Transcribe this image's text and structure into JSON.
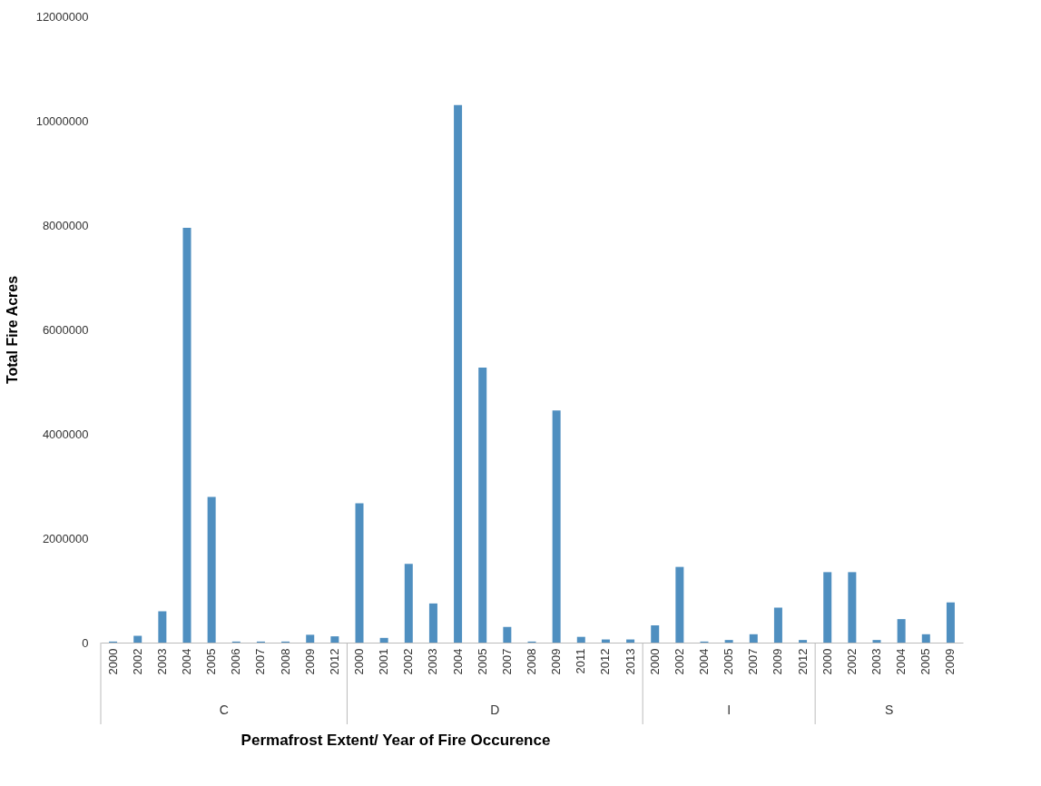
{
  "chart_data": {
    "type": "bar",
    "xlabel": "Permafrost Extent/ Year of Fire Occurence",
    "ylabel": "Total Fire Acres",
    "categories": [
      "2000",
      "2002",
      "2003",
      "2004",
      "2005",
      "2006",
      "2007",
      "2008",
      "2009",
      "2012",
      "2000",
      "2001",
      "2002",
      "2003",
      "2004",
      "2005",
      "2007",
      "2008",
      "2009",
      "2011",
      "2012",
      "2013",
      "2000",
      "2002",
      "2004",
      "2005",
      "2007",
      "2009",
      "2012",
      "2000",
      "2002",
      "2003",
      "2004",
      "2005",
      "2009"
    ],
    "values": [
      20000,
      130000,
      600000,
      7950000,
      2790000,
      20000,
      20000,
      20000,
      150000,
      120000,
      2670000,
      90000,
      1510000,
      750000,
      10300000,
      5270000,
      300000,
      20000,
      4450000,
      110000,
      60000,
      60000,
      330000,
      1450000,
      20000,
      50000,
      160000,
      670000,
      50000,
      1350000,
      1350000,
      50000,
      450000,
      160000,
      770000
    ],
    "color": "#4f8fc0",
    "annotations": [
      "C",
      "D",
      "I",
      "S"
    ],
    "ylim": [
      0,
      12000000
    ],
    "yticks": [
      0,
      2000000,
      4000000,
      6000000,
      8000000,
      10000000,
      12000000
    ],
    "grid": false
  }
}
